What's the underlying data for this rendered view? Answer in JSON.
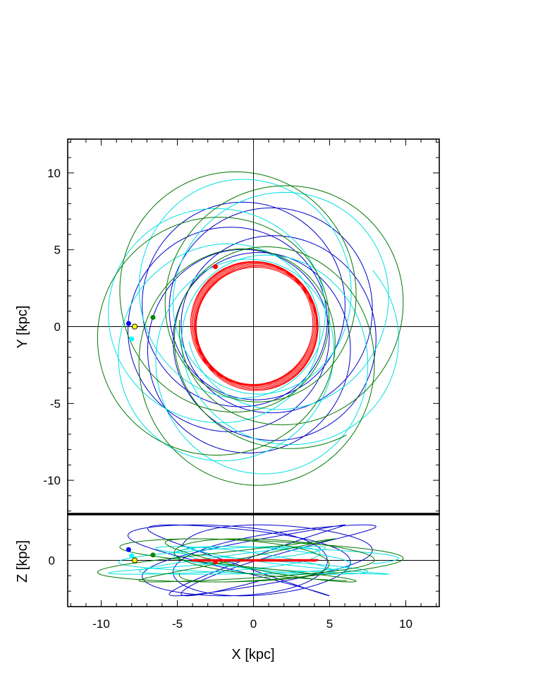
{
  "chart_data": {
    "type": "line",
    "panels": [
      {
        "id": "xy",
        "xlabel": "X [kpc]",
        "ylabel": "Y [kpc]",
        "xlim": [
          -12.2,
          12.2
        ],
        "ylim": [
          -12.2,
          12.2
        ],
        "yticks": [
          -10,
          -5,
          0,
          5,
          10
        ],
        "ytick_labels": [
          "-10",
          "-5",
          "0",
          "5",
          "10"
        ],
        "crosshair": [
          0,
          0
        ]
      },
      {
        "id": "xz",
        "xlabel": "X [kpc]",
        "ylabel": "Z [kpc]",
        "xlim": [
          -12.2,
          12.2
        ],
        "ylim": [
          -3,
          3
        ],
        "xticks": [
          -10,
          -5,
          0,
          5,
          10
        ],
        "xtick_labels": [
          "-10",
          "-5",
          "0",
          "5",
          "10"
        ],
        "yticks": [
          0
        ],
        "ytick_labels": [
          "0"
        ],
        "crosshair": [
          0,
          0
        ]
      }
    ],
    "series": [
      {
        "color": "#0000cc",
        "marker_color": "#0000ff",
        "orbit": {
          "a": 6.5,
          "e": 0.27,
          "precession_deg": 72,
          "phase0_deg": 187,
          "turns": 5.2,
          "zamp": 2.3
        },
        "start": {
          "x": -8.2,
          "y": 0.2,
          "z": 0.7
        }
      },
      {
        "color": "#00e0e0",
        "marker_color": "#00ffff",
        "orbit": {
          "a": 7.0,
          "e": 0.38,
          "precession_deg": 60,
          "phase0_deg": 193,
          "turns": 5.6,
          "zamp": 0.9
        },
        "start": {
          "x": -8.0,
          "y": -0.8,
          "z": 0.3
        }
      },
      {
        "color": "#007700",
        "marker_color": "#008800",
        "orbit": {
          "a": 7.6,
          "e": 0.36,
          "precession_deg": 80,
          "phase0_deg": 175,
          "turns": 4.4,
          "zamp": 1.4
        },
        "start": {
          "x": -6.6,
          "y": 0.6,
          "z": 0.35
        }
      },
      {
        "color": "#ff0000",
        "marker_color": "#ff0000",
        "orbit": {
          "a": 4.0,
          "e": 0.06,
          "precession_deg": 20,
          "phase0_deg": 130,
          "turns": 9,
          "zamp": 0.06
        },
        "start": {
          "x": -2.5,
          "y": 3.9,
          "z": -0.1
        }
      }
    ],
    "sun": {
      "color": "#ffff00",
      "x": -7.8,
      "y": 0.0,
      "z": 0.0
    }
  }
}
